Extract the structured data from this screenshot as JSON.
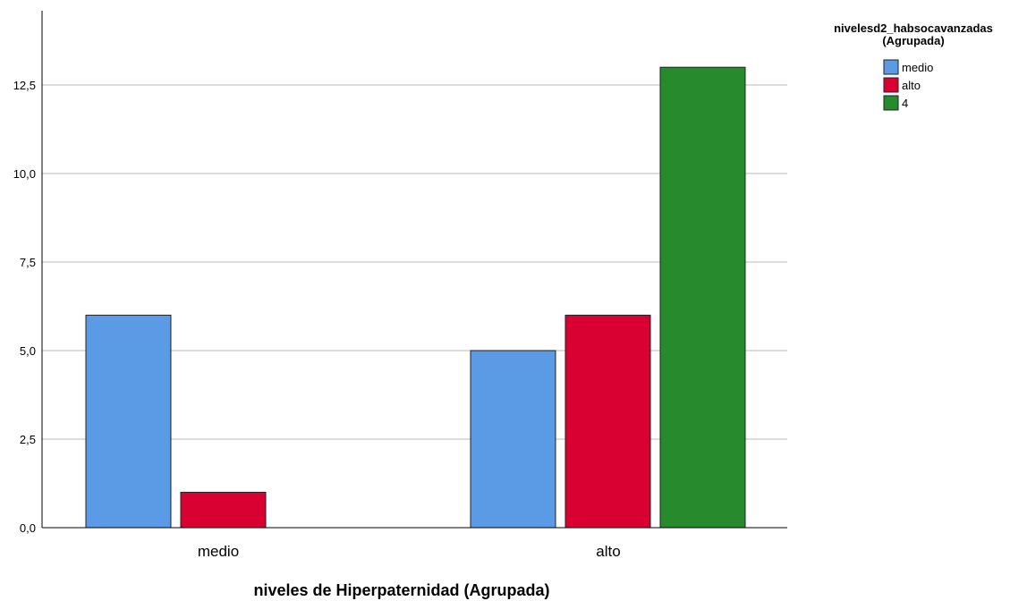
{
  "chart_data": {
    "type": "bar",
    "title": "",
    "xlabel": "niveles de Hiperpaternidad (Agrupada)",
    "ylabel": "",
    "categories": [
      "medio",
      "alto"
    ],
    "series": [
      {
        "name": "medio",
        "color": "#5B9BE6",
        "values": [
          6,
          5
        ]
      },
      {
        "name": "alto",
        "color": "#D90032",
        "values": [
          1,
          6
        ]
      },
      {
        "name": "4",
        "color": "#278B2D",
        "values": [
          null,
          13
        ]
      }
    ],
    "ylim": [
      0,
      14
    ],
    "yticks": [
      0,
      2.5,
      5,
      7.5,
      10,
      12.5
    ],
    "ytick_labels": [
      "0,0",
      "2,5",
      "5,0",
      "7,5",
      "10,0",
      "12,5"
    ],
    "grid": true,
    "legend": {
      "title_lines": [
        "nivelesd2_habsocavanzadas",
        "(Agrupada)"
      ],
      "placement": "top-right"
    }
  }
}
